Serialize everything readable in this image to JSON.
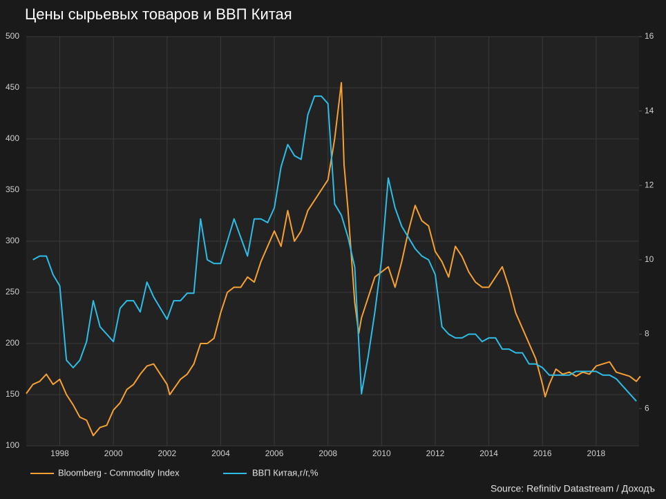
{
  "chart_data": {
    "type": "line",
    "title": "Цены сырьевых товаров и ВВП Китая",
    "source": "Source: Refinitiv Datastream / Доходъ",
    "xlim": [
      1996.75,
      2019.6
    ],
    "xticks": [
      1998,
      2000,
      2002,
      2004,
      2006,
      2008,
      2010,
      2012,
      2014,
      2016,
      2018
    ],
    "ylim": [
      100,
      500
    ],
    "yticks": [
      100,
      150,
      200,
      250,
      300,
      350,
      400,
      450,
      500
    ],
    "y2lim": [
      5,
      16
    ],
    "y2ticks": [
      6,
      8,
      10,
      12,
      14,
      16
    ],
    "grid": true,
    "series": [
      {
        "name": "Bloomberg - Commodity Index",
        "color": "#f7a135",
        "x": [
          1996.75,
          1997,
          1997.25,
          1997.5,
          1997.75,
          1998,
          1998.25,
          1998.5,
          1998.75,
          1999,
          1999.25,
          1999.5,
          1999.75,
          2000,
          2000.25,
          2000.5,
          2000.75,
          2001,
          2001.25,
          2001.5,
          2001.75,
          2002,
          2002.1,
          2002.5,
          2002.75,
          2003,
          2003.25,
          2003.5,
          2003.75,
          2004,
          2004.25,
          2004.5,
          2004.75,
          2005,
          2005.25,
          2005.5,
          2005.75,
          2006,
          2006.25,
          2006.5,
          2006.75,
          2007,
          2007.25,
          2007.5,
          2007.75,
          2008,
          2008.25,
          2008.5,
          2008.6,
          2008.75,
          2009,
          2009.15,
          2009.25,
          2009.5,
          2009.75,
          2010,
          2010.25,
          2010.5,
          2010.75,
          2011,
          2011.25,
          2011.5,
          2011.75,
          2012,
          2012.25,
          2012.5,
          2012.75,
          2013,
          2013.25,
          2013.5,
          2013.75,
          2014,
          2014.5,
          2014.75,
          2015,
          2015.25,
          2015.5,
          2015.75,
          2016,
          2016.1,
          2016.25,
          2016.5,
          2016.75,
          2017,
          2017.25,
          2017.5,
          2017.75,
          2018,
          2018.25,
          2018.5,
          2018.75,
          2019,
          2019.25,
          2019.5,
          2019.65
        ],
        "values": [
          151,
          160,
          163,
          170,
          160,
          165,
          150,
          140,
          128,
          125,
          110,
          118,
          120,
          135,
          142,
          155,
          160,
          170,
          178,
          180,
          170,
          160,
          150,
          165,
          170,
          180,
          200,
          200,
          205,
          230,
          250,
          255,
          255,
          265,
          260,
          280,
          295,
          310,
          295,
          330,
          300,
          310,
          330,
          340,
          350,
          360,
          400,
          455,
          375,
          330,
          240,
          210,
          225,
          245,
          265,
          270,
          275,
          255,
          280,
          310,
          335,
          320,
          315,
          290,
          280,
          265,
          295,
          285,
          270,
          260,
          255,
          255,
          275,
          255,
          230,
          215,
          200,
          185,
          160,
          148,
          160,
          175,
          170,
          172,
          168,
          172,
          170,
          178,
          180,
          182,
          172,
          170,
          168,
          163,
          168
        ]
      },
      {
        "name": "ВВП Китая,г/г,%",
        "color": "#2ebde6",
        "axis": "y2",
        "x": [
          1997,
          1997.25,
          1997.5,
          1997.75,
          1998,
          1998.25,
          1998.5,
          1998.75,
          1999,
          1999.25,
          1999.5,
          1999.75,
          2000,
          2000.25,
          2000.5,
          2000.75,
          2001,
          2001.25,
          2001.5,
          2001.75,
          2002,
          2002.25,
          2002.5,
          2002.75,
          2003,
          2003.25,
          2003.5,
          2003.75,
          2004,
          2004.25,
          2004.5,
          2004.75,
          2005,
          2005.25,
          2005.5,
          2005.75,
          2006,
          2006.25,
          2006.5,
          2006.75,
          2007,
          2007.25,
          2007.5,
          2007.75,
          2008,
          2008.25,
          2008.5,
          2008.75,
          2009,
          2009.25,
          2009.5,
          2009.75,
          2010,
          2010.25,
          2010.5,
          2010.75,
          2011,
          2011.25,
          2011.5,
          2011.75,
          2012,
          2012.25,
          2012.5,
          2012.75,
          2013,
          2013.25,
          2013.5,
          2013.75,
          2014,
          2014.25,
          2014.5,
          2014.75,
          2015,
          2015.25,
          2015.5,
          2015.75,
          2016,
          2016.25,
          2016.5,
          2016.75,
          2017,
          2017.25,
          2017.5,
          2017.75,
          2018,
          2018.25,
          2018.5,
          2018.75,
          2019,
          2019.25,
          2019.5
        ],
        "values": [
          10.0,
          10.1,
          10.1,
          9.6,
          9.3,
          7.3,
          7.1,
          7.3,
          7.8,
          8.9,
          8.2,
          8.0,
          7.8,
          8.7,
          8.9,
          8.9,
          8.6,
          9.4,
          9.0,
          8.7,
          8.4,
          8.9,
          8.9,
          9.1,
          9.1,
          11.1,
          10.0,
          9.9,
          9.9,
          10.5,
          11.1,
          10.6,
          10.1,
          11.1,
          11.1,
          11.0,
          11.4,
          12.5,
          13.1,
          12.8,
          12.7,
          13.9,
          14.4,
          14.4,
          14.2,
          11.5,
          11.2,
          10.6,
          9.8,
          6.4,
          7.4,
          8.6,
          10.0,
          12.2,
          11.4,
          10.9,
          10.6,
          10.3,
          10.1,
          10.0,
          9.6,
          8.2,
          8.0,
          7.9,
          7.9,
          8.0,
          8.0,
          7.8,
          7.9,
          7.9,
          7.6,
          7.6,
          7.5,
          7.5,
          7.2,
          7.2,
          7.1,
          6.9,
          6.9,
          6.9,
          6.9,
          7.0,
          7.0,
          7.0,
          7.0,
          6.9,
          6.9,
          6.8,
          6.6,
          6.4,
          6.2
        ]
      }
    ]
  }
}
